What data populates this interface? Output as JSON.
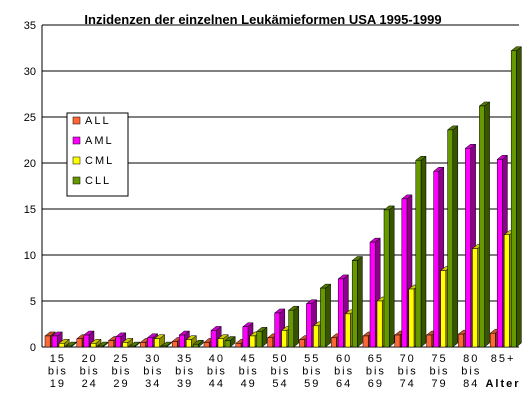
{
  "chart_data": {
    "type": "bar",
    "title": "Inzidenzen der einzelnen Leukämieformen USA 1995-1999",
    "xlabel": "Alter",
    "ylabel": "",
    "ylim": [
      0,
      35
    ],
    "yticks": [
      "0",
      "5",
      "10",
      "15",
      "20",
      "25",
      "30",
      "35"
    ],
    "grid": true,
    "legend_position": "left",
    "categories": [
      [
        "15",
        "bis",
        "19"
      ],
      [
        "20",
        "bis",
        "24"
      ],
      [
        "25",
        "bis",
        "29"
      ],
      [
        "30",
        "bis",
        "34"
      ],
      [
        "35",
        "bis",
        "39"
      ],
      [
        "40",
        "bis",
        "44"
      ],
      [
        "45",
        "bis",
        "49"
      ],
      [
        "50",
        "bis",
        "54"
      ],
      [
        "55",
        "bis",
        "59"
      ],
      [
        "60",
        "bis",
        "64"
      ],
      [
        "65",
        "bis",
        "69"
      ],
      [
        "70",
        "bis",
        "74"
      ],
      [
        "75",
        "bis",
        "79"
      ],
      [
        "80",
        "bis",
        "84"
      ],
      [
        "85+"
      ]
    ],
    "series": [
      {
        "name": "ALL",
        "color": "#ff6633",
        "values": [
          1.2,
          0.9,
          0.7,
          0.5,
          0.6,
          0.5,
          0.4,
          1.0,
          0.8,
          1.0,
          1.2,
          1.3,
          1.3,
          1.4,
          1.5
        ]
      },
      {
        "name": "AML",
        "color": "#ff00ff",
        "values": [
          1.2,
          1.3,
          1.1,
          1.0,
          1.3,
          1.8,
          2.2,
          3.7,
          4.7,
          7.4,
          11.4,
          16.1,
          19.1,
          21.6,
          20.4
        ]
      },
      {
        "name": "CML",
        "color": "#ffff00",
        "values": [
          0.4,
          0.4,
          0.5,
          0.9,
          0.8,
          0.9,
          1.2,
          1.8,
          2.3,
          3.6,
          5.0,
          6.3,
          8.3,
          10.7,
          12.2
        ]
      },
      {
        "name": "CLL",
        "color": "#669900",
        "values": [
          0.1,
          0.1,
          0.1,
          0.1,
          0.3,
          0.7,
          1.7,
          4.0,
          6.4,
          9.4,
          14.9,
          20.3,
          23.6,
          26.2,
          32.2
        ]
      }
    ]
  }
}
